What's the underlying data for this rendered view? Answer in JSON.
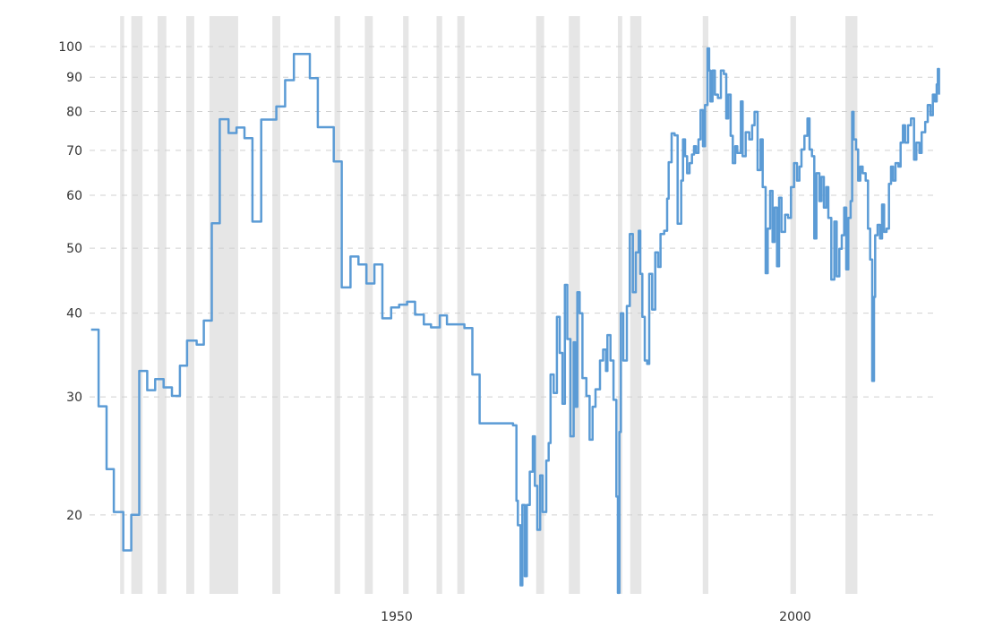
{
  "chart_data": {
    "type": "line",
    "line_style": "step",
    "title": "",
    "xlabel": "",
    "ylabel": "",
    "y_scale": "log",
    "ylim": [
      15,
      100
    ],
    "y_ticks": [
      20,
      30,
      40,
      50,
      60,
      70,
      80,
      90,
      100
    ],
    "y_tick_labels": [
      "20",
      "30",
      "40",
      "50",
      "60",
      "70",
      "80",
      "90",
      "100"
    ],
    "x_ticks": [
      1950,
      2000
    ],
    "x_tick_labels": [
      "1950",
      "2000"
    ],
    "xlim": [
      1911.5,
      2018.3
    ],
    "grid": "horizontal dashed",
    "legend": "none",
    "colors": {
      "line": "#5b9bd5",
      "bands": "#e6e6e6",
      "grid": "#d0d0d0",
      "text": "#333333"
    },
    "shaded_bands": [
      [
        1915.3,
        1915.8
      ],
      [
        1916.7,
        1918.1
      ],
      [
        1920.0,
        1921.1
      ],
      [
        1923.6,
        1924.6
      ],
      [
        1926.5,
        1930.1
      ],
      [
        1934.4,
        1935.4
      ],
      [
        1942.2,
        1942.9
      ],
      [
        1946.0,
        1947.0
      ],
      [
        1950.8,
        1951.5
      ],
      [
        1955.0,
        1955.7
      ],
      [
        1957.6,
        1958.5
      ],
      [
        1967.5,
        1968.5
      ],
      [
        1971.6,
        1973.0
      ],
      [
        1977.75,
        1978.3
      ],
      [
        1979.3,
        1980.7
      ],
      [
        1988.4,
        1989.1
      ],
      [
        1999.4,
        2000.1
      ],
      [
        2006.3,
        2007.8
      ]
    ],
    "series": [
      {
        "points": [
          [
            1911.65,
            37.8
          ],
          [
            1912.6,
            29.05
          ],
          [
            1913.6,
            23.4
          ],
          [
            1914.5,
            20.2
          ],
          [
            1915.7,
            17.7
          ],
          [
            1916.7,
            20.0
          ],
          [
            1917.7,
            32.8
          ],
          [
            1918.7,
            30.7
          ],
          [
            1919.7,
            31.9
          ],
          [
            1920.75,
            31.0
          ],
          [
            1921.8,
            30.1
          ],
          [
            1922.8,
            33.4
          ],
          [
            1923.7,
            36.4
          ],
          [
            1924.9,
            35.9
          ],
          [
            1925.8,
            39.0
          ],
          [
            1926.8,
            54.5
          ],
          [
            1927.8,
            77.9
          ],
          [
            1928.9,
            74.3
          ],
          [
            1929.9,
            75.7
          ],
          [
            1930.9,
            73.0
          ],
          [
            1931.9,
            54.8
          ],
          [
            1933.0,
            77.8
          ],
          [
            1934.9,
            81.4
          ],
          [
            1936.0,
            89.1
          ],
          [
            1937.1,
            97.5
          ],
          [
            1939.1,
            89.7
          ],
          [
            1940.1,
            75.8
          ],
          [
            1942.1,
            67.4
          ],
          [
            1943.1,
            43.7
          ],
          [
            1944.2,
            48.6
          ],
          [
            1945.2,
            47.3
          ],
          [
            1946.2,
            44.3
          ],
          [
            1947.2,
            47.3
          ],
          [
            1948.2,
            39.3
          ],
          [
            1949.3,
            40.8
          ],
          [
            1950.3,
            41.2
          ],
          [
            1951.3,
            41.6
          ],
          [
            1952.3,
            39.8
          ],
          [
            1953.4,
            38.5
          ],
          [
            1954.3,
            38.1
          ],
          [
            1955.4,
            39.7
          ],
          [
            1956.3,
            38.5
          ],
          [
            1958.5,
            38.0
          ],
          [
            1959.5,
            32.4
          ],
          [
            1960.4,
            27.4
          ],
          [
            1964.6,
            27.2
          ],
          [
            1965.02,
            21.0
          ],
          [
            1965.2,
            19.3
          ],
          [
            1965.54,
            15.7
          ],
          [
            1965.76,
            20.7
          ],
          [
            1966.07,
            16.2
          ],
          [
            1966.33,
            20.7
          ],
          [
            1966.7,
            23.2
          ],
          [
            1967.08,
            26.2
          ],
          [
            1967.34,
            22.1
          ],
          [
            1967.64,
            19.0
          ],
          [
            1968.0,
            22.9
          ],
          [
            1968.3,
            20.2
          ],
          [
            1968.76,
            24.1
          ],
          [
            1969.07,
            25.6
          ],
          [
            1969.3,
            32.4
          ],
          [
            1969.7,
            30.4
          ],
          [
            1970.1,
            39.5
          ],
          [
            1970.45,
            34.9
          ],
          [
            1970.8,
            29.3
          ],
          [
            1971.1,
            44.1
          ],
          [
            1971.4,
            36.6
          ],
          [
            1971.8,
            26.2
          ],
          [
            1972.2,
            36.2
          ],
          [
            1972.4,
            29.0
          ],
          [
            1972.66,
            43.0
          ],
          [
            1972.96,
            40.0
          ],
          [
            1973.3,
            32.0
          ],
          [
            1973.8,
            30.1
          ],
          [
            1974.2,
            25.9
          ],
          [
            1974.57,
            29.0
          ],
          [
            1974.94,
            30.8
          ],
          [
            1975.5,
            34.0
          ],
          [
            1975.9,
            35.3
          ],
          [
            1976.26,
            32.8
          ],
          [
            1976.44,
            37.1
          ],
          [
            1976.82,
            34.0
          ],
          [
            1977.2,
            29.7
          ],
          [
            1977.4,
            29.7
          ],
          [
            1977.56,
            21.3
          ],
          [
            1977.75,
            15.3
          ],
          [
            1977.94,
            26.6
          ],
          [
            1978.12,
            40.0
          ],
          [
            1978.43,
            34.0
          ],
          [
            1978.88,
            41.0
          ],
          [
            1979.25,
            52.5
          ],
          [
            1979.63,
            43.0
          ],
          [
            1980.0,
            49.3
          ],
          [
            1980.37,
            53.1
          ],
          [
            1980.56,
            45.8
          ],
          [
            1980.82,
            39.5
          ],
          [
            1981.12,
            34.0
          ],
          [
            1981.43,
            33.6
          ],
          [
            1981.69,
            45.8
          ],
          [
            1982.06,
            40.5
          ],
          [
            1982.44,
            49.3
          ],
          [
            1982.8,
            46.9
          ],
          [
            1983.1,
            52.5
          ],
          [
            1983.56,
            53.1
          ],
          [
            1983.93,
            59.3
          ],
          [
            1984.12,
            67.2
          ],
          [
            1984.5,
            74.2
          ],
          [
            1984.87,
            73.7
          ],
          [
            1985.25,
            54.4
          ],
          [
            1985.55,
            54.4
          ],
          [
            1985.7,
            63.1
          ],
          [
            1985.92,
            72.7
          ],
          [
            1986.18,
            68.6
          ],
          [
            1986.44,
            64.7
          ],
          [
            1986.74,
            67.0
          ],
          [
            1987.04,
            69.0
          ],
          [
            1987.3,
            71.0
          ],
          [
            1987.56,
            69.4
          ],
          [
            1987.87,
            72.7
          ],
          [
            1988.12,
            80.4
          ],
          [
            1988.43,
            71.0
          ],
          [
            1988.69,
            81.8
          ],
          [
            1989.0,
            99.4
          ],
          [
            1989.2,
            92.1
          ],
          [
            1989.36,
            82.8
          ],
          [
            1989.63,
            92.1
          ],
          [
            1989.92,
            84.8
          ],
          [
            1990.3,
            83.8
          ],
          [
            1990.67,
            92.1
          ],
          [
            1991.04,
            91.0
          ],
          [
            1991.35,
            78.1
          ],
          [
            1991.6,
            84.8
          ],
          [
            1991.9,
            73.6
          ],
          [
            1992.17,
            67.0
          ],
          [
            1992.47,
            71.0
          ],
          [
            1992.73,
            69.4
          ],
          [
            1993.18,
            82.8
          ],
          [
            1993.4,
            68.6
          ],
          [
            1993.79,
            74.5
          ],
          [
            1994.24,
            72.7
          ],
          [
            1994.6,
            76.3
          ],
          [
            1994.9,
            79.9
          ],
          [
            1995.28,
            65.4
          ],
          [
            1995.65,
            72.7
          ],
          [
            1995.92,
            61.7
          ],
          [
            1996.29,
            45.9
          ],
          [
            1996.55,
            53.5
          ],
          [
            1996.85,
            60.9
          ],
          [
            1997.16,
            51.1
          ],
          [
            1997.42,
            57.5
          ],
          [
            1997.72,
            47.0
          ],
          [
            1997.98,
            59.5
          ],
          [
            1998.28,
            52.9
          ],
          [
            1998.73,
            56.1
          ],
          [
            1999.1,
            55.5
          ],
          [
            1999.47,
            61.7
          ],
          [
            1999.85,
            67.0
          ],
          [
            2000.22,
            63.1
          ],
          [
            2000.53,
            66.2
          ],
          [
            2000.79,
            70.2
          ],
          [
            2001.16,
            73.6
          ],
          [
            2001.54,
            78.1
          ],
          [
            2001.8,
            70.2
          ],
          [
            2002.1,
            68.6
          ],
          [
            2002.39,
            51.7
          ],
          [
            2002.66,
            64.7
          ],
          [
            2003.03,
            58.8
          ],
          [
            2003.29,
            63.9
          ],
          [
            2003.6,
            57.5
          ],
          [
            2003.9,
            61.7
          ],
          [
            2004.16,
            55.5
          ],
          [
            2004.53,
            44.9
          ],
          [
            2004.91,
            54.8
          ],
          [
            2005.2,
            45.4
          ],
          [
            2005.54,
            49.9
          ],
          [
            2005.84,
            52.3
          ],
          [
            2006.15,
            57.5
          ],
          [
            2006.4,
            46.5
          ],
          [
            2006.66,
            55.5
          ],
          [
            2006.96,
            58.8
          ],
          [
            2007.15,
            79.9
          ],
          [
            2007.33,
            72.7
          ],
          [
            2007.64,
            70.2
          ],
          [
            2007.9,
            63.1
          ],
          [
            2008.17,
            66.2
          ],
          [
            2008.46,
            64.7
          ],
          [
            2008.84,
            63.1
          ],
          [
            2009.13,
            53.5
          ],
          [
            2009.4,
            48.1
          ],
          [
            2009.66,
            31.7
          ],
          [
            2009.89,
            42.3
          ],
          [
            2010.03,
            52.3
          ],
          [
            2010.34,
            54.2
          ],
          [
            2010.64,
            51.7
          ],
          [
            2010.9,
            58.1
          ],
          [
            2011.16,
            52.9
          ],
          [
            2011.46,
            53.5
          ],
          [
            2011.76,
            62.4
          ],
          [
            2012.02,
            66.2
          ],
          [
            2012.28,
            63.1
          ],
          [
            2012.58,
            67.0
          ],
          [
            2012.96,
            66.2
          ],
          [
            2013.22,
            71.9
          ],
          [
            2013.52,
            76.3
          ],
          [
            2013.79,
            71.9
          ],
          [
            2014.16,
            76.3
          ],
          [
            2014.53,
            78.1
          ],
          [
            2014.91,
            67.8
          ],
          [
            2015.2,
            71.9
          ],
          [
            2015.58,
            69.4
          ],
          [
            2015.87,
            74.5
          ],
          [
            2016.32,
            77.2
          ],
          [
            2016.63,
            81.8
          ],
          [
            2016.97,
            79.0
          ],
          [
            2017.27,
            84.8
          ],
          [
            2017.53,
            82.8
          ],
          [
            2017.75,
            87.8
          ],
          [
            2017.9,
            92.6
          ],
          [
            2018.05,
            84.8
          ]
        ]
      }
    ]
  }
}
